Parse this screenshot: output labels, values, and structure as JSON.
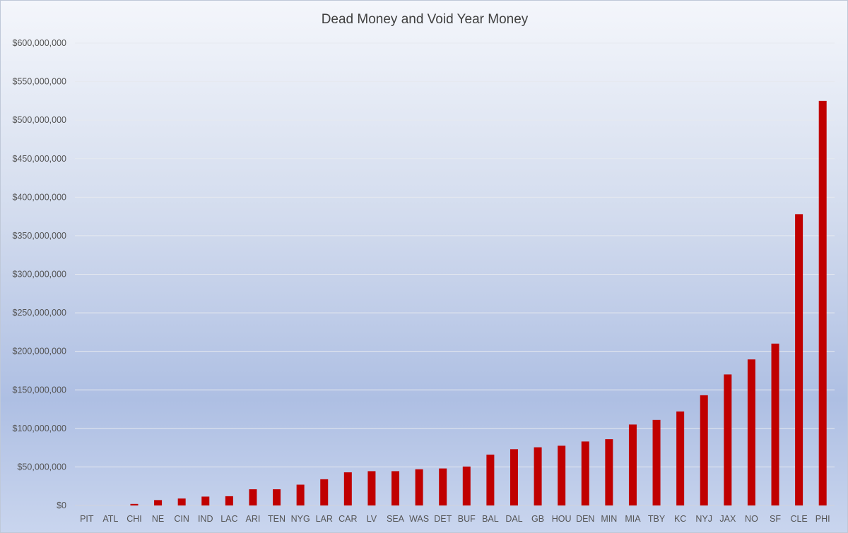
{
  "chart_data": {
    "type": "bar",
    "title": "Dead Money and Void Year Money",
    "xlabel": "",
    "ylabel": "",
    "categories": [
      "PIT",
      "ATL",
      "CHI",
      "NE",
      "CIN",
      "IND",
      "LAC",
      "ARI",
      "TEN",
      "NYG",
      "LAR",
      "CAR",
      "LV",
      "SEA",
      "WAS",
      "DET",
      "BUF",
      "BAL",
      "DAL",
      "GB",
      "HOU",
      "DEN",
      "MIN",
      "MIA",
      "TBY",
      "KC",
      "NYJ",
      "JAX",
      "NO",
      "SF",
      "CLE",
      "PHI"
    ],
    "values": [
      0,
      0,
      2000000,
      7000000,
      9000000,
      11500000,
      12000000,
      21000000,
      21000000,
      27000000,
      34000000,
      43000000,
      44500000,
      44500000,
      47000000,
      48000000,
      50500000,
      66000000,
      73000000,
      75500000,
      77500000,
      83000000,
      86000000,
      105000000,
      111000000,
      122000000,
      143000000,
      170000000,
      189500000,
      210000000,
      378000000,
      525000000
    ],
    "ylim": [
      0,
      600000000
    ],
    "yticks": [
      "$0",
      "$50,000,000",
      "$100,000,000",
      "$150,000,000",
      "$200,000,000",
      "$250,000,000",
      "$300,000,000",
      "$350,000,000",
      "$400,000,000",
      "$450,000,000",
      "$500,000,000",
      "$550,000,000",
      "$600,000,000"
    ],
    "grid": true,
    "legend": "none",
    "bar_color": "#c00000",
    "grid_color": "#e6e9ef"
  }
}
